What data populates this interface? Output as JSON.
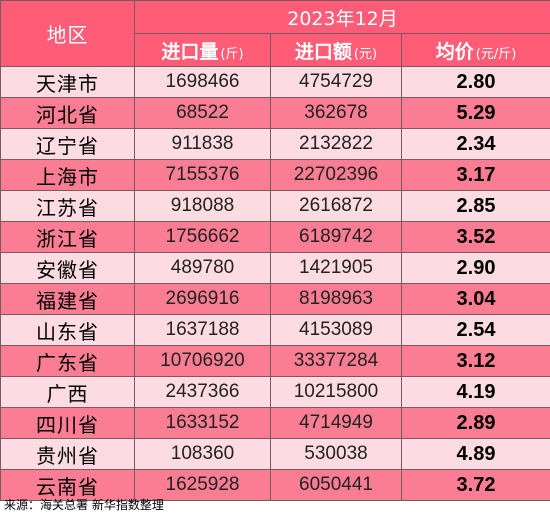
{
  "table": {
    "header": {
      "region_label": "地区",
      "period": "2023年12月",
      "col_volume": "进口量",
      "col_volume_unit": "(斤)",
      "col_value": "进口额",
      "col_value_unit": "(元)",
      "col_price": "均价",
      "col_price_unit": "(元/斤)"
    },
    "rows": [
      {
        "region": "天津市",
        "volume": "1698466",
        "value": "4754729",
        "price": "2.80"
      },
      {
        "region": "河北省",
        "volume": "68522",
        "value": "362678",
        "price": "5.29"
      },
      {
        "region": "辽宁省",
        "volume": "911838",
        "value": "2132822",
        "price": "2.34"
      },
      {
        "region": "上海市",
        "volume": "7155376",
        "value": "22702396",
        "price": "3.17"
      },
      {
        "region": "江苏省",
        "volume": "918088",
        "value": "2616872",
        "price": "2.85"
      },
      {
        "region": "浙江省",
        "volume": "1756662",
        "value": "6189742",
        "price": "3.52"
      },
      {
        "region": "安徽省",
        "volume": "489780",
        "value": "1421905",
        "price": "2.90"
      },
      {
        "region": "福建省",
        "volume": "2696916",
        "value": "8198963",
        "price": "3.04"
      },
      {
        "region": "山东省",
        "volume": "1637188",
        "value": "4153089",
        "price": "2.54"
      },
      {
        "region": "广东省",
        "volume": "10706920",
        "value": "33377284",
        "price": "3.12"
      },
      {
        "region": "广西",
        "volume": "2437366",
        "value": "10215800",
        "price": "4.19"
      },
      {
        "region": "四川省",
        "volume": "1633152",
        "value": "4714949",
        "price": "2.89"
      },
      {
        "region": "贵州省",
        "volume": "108360",
        "value": "530038",
        "price": "4.89"
      },
      {
        "region": "云南省",
        "volume": "1625928",
        "value": "6050441",
        "price": "3.72"
      }
    ]
  },
  "source": "来源：海关总署 新华指数整理",
  "colors": {
    "header_bg": "#ff5c78",
    "row_light": "#fddbe3",
    "row_dark": "#fb7d93"
  }
}
